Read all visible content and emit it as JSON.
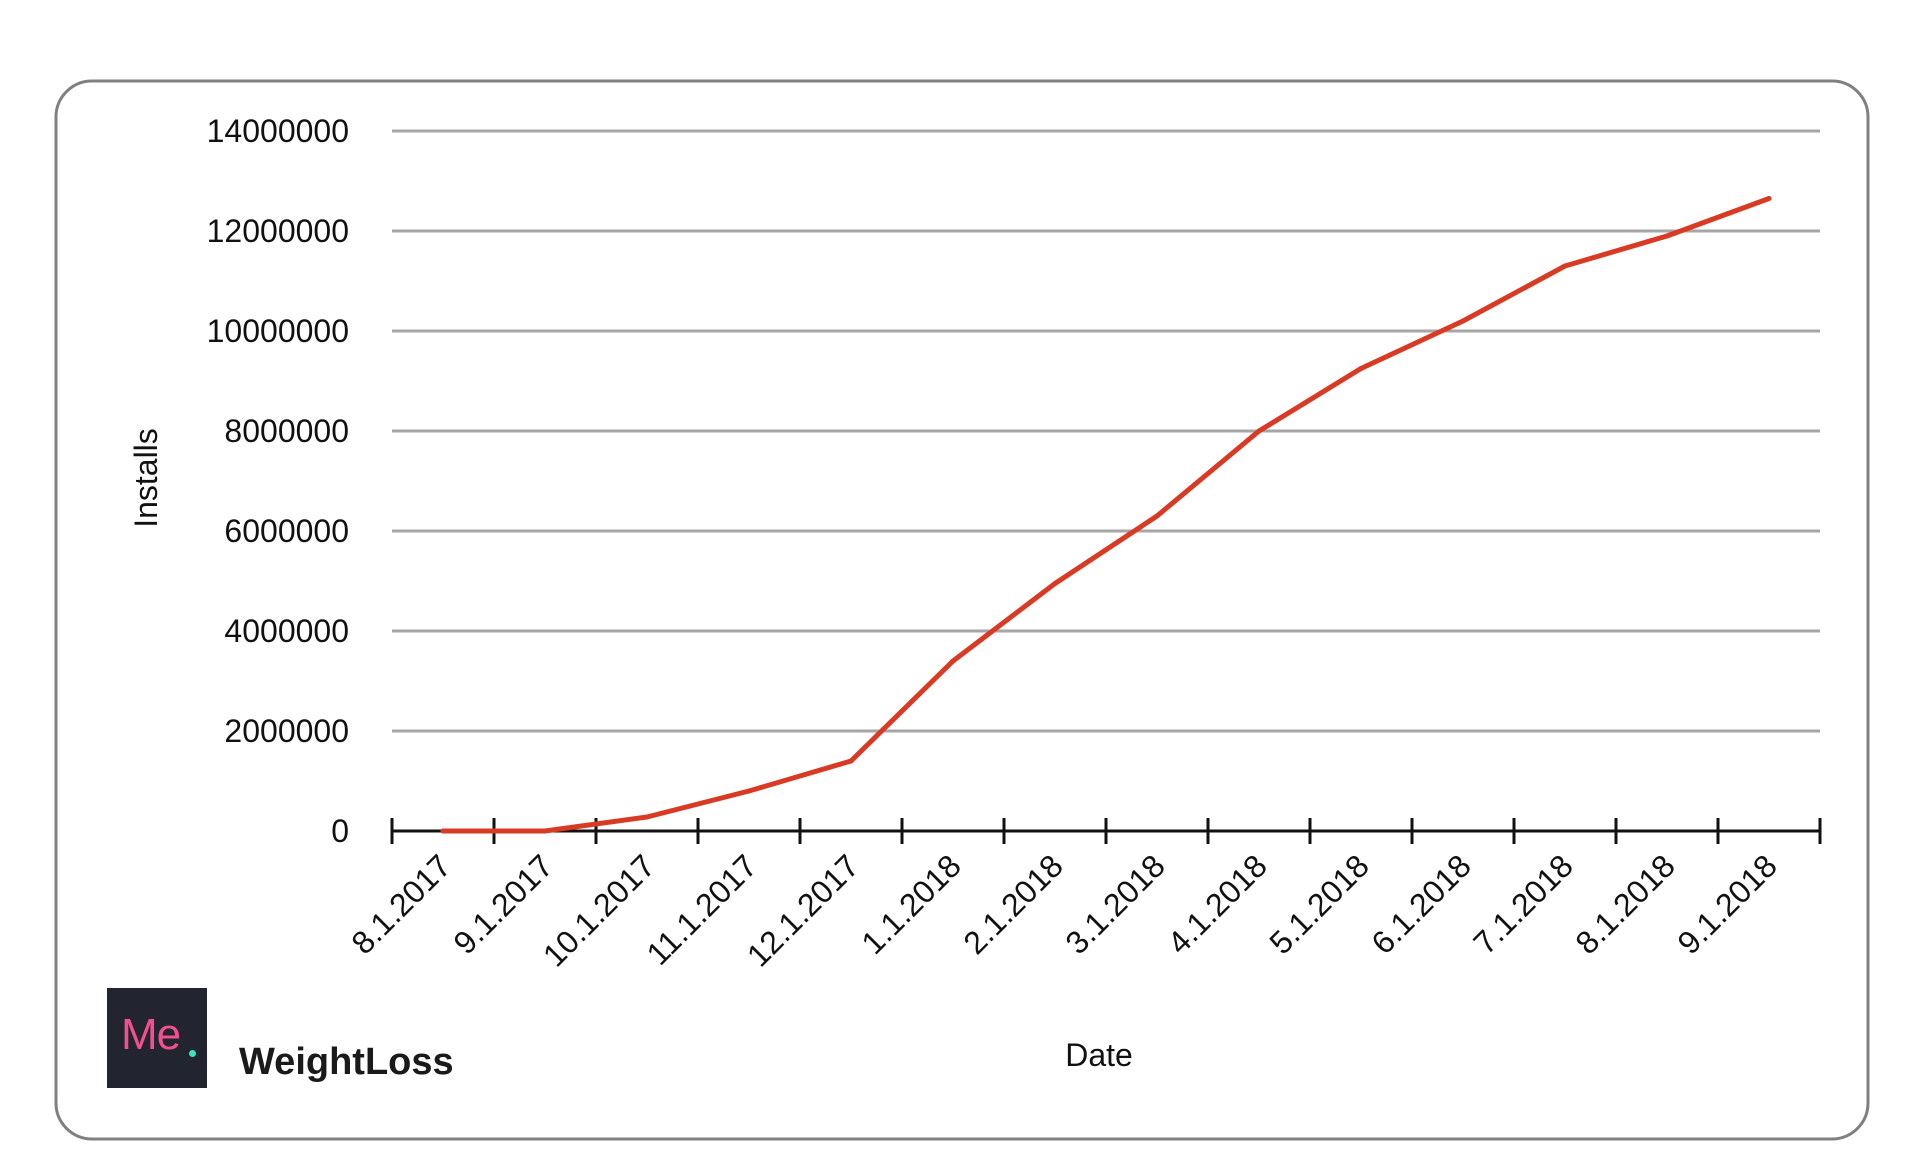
{
  "brand": {
    "logo_text": "Me",
    "name": "WeightLoss",
    "logo_bg": "#22242f",
    "logo_text_color": "#f0508c",
    "logo_dot_color": "#3ee0c0"
  },
  "chart_data": {
    "type": "line",
    "xlabel": "Date",
    "ylabel": "Installs",
    "x": [
      "8.1.2017",
      "9.1.2017",
      "10.1.2017",
      "11.1.2017",
      "12.1.2017",
      "1.1.2018",
      "2.1.2018",
      "3.1.2018",
      "4.1.2018",
      "5.1.2018",
      "6.1.2018",
      "7.1.2018",
      "8.1.2018",
      "9.1.2018"
    ],
    "y_ticks": [
      0,
      2000000,
      4000000,
      6000000,
      8000000,
      10000000,
      12000000,
      14000000
    ],
    "ylim": [
      0,
      14000000
    ],
    "grid": true,
    "series": [
      {
        "color": "#d93a24",
        "values": [
          0,
          0,
          280000,
          800000,
          1400000,
          3400000,
          4950000,
          6300000,
          8000000,
          9250000,
          10200000,
          11300000,
          11900000,
          12650000
        ]
      }
    ]
  }
}
